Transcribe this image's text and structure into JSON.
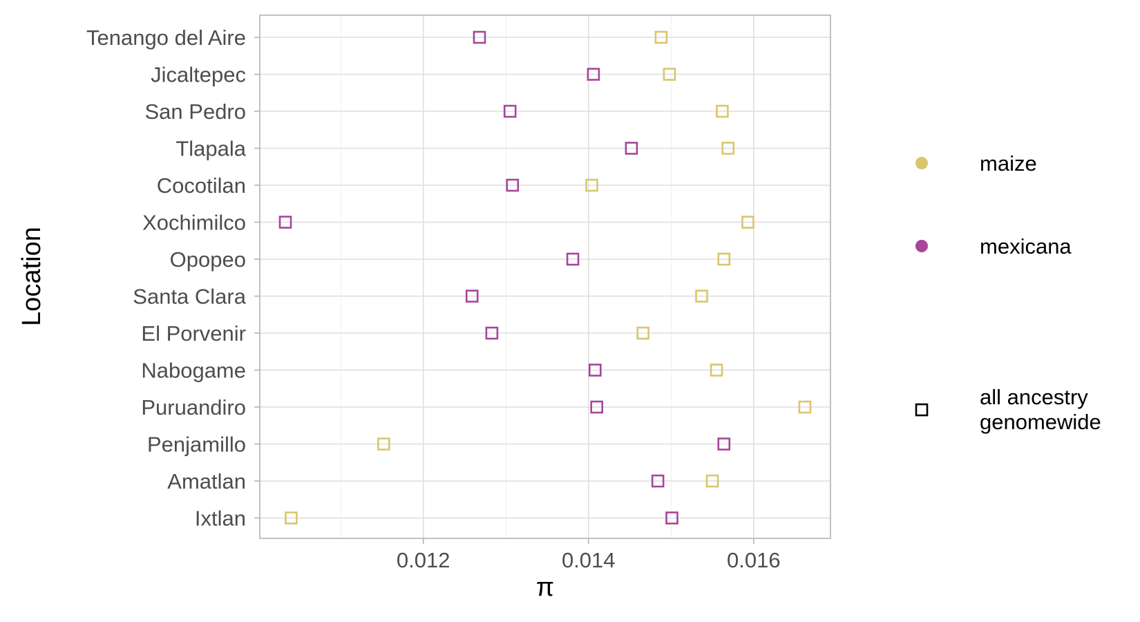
{
  "chart_data": {
    "type": "scatter",
    "xlabel": "π",
    "ylabel": "Location",
    "xlim": [
      0.01002,
      0.01693
    ],
    "x_ticks": [
      0.012,
      0.014,
      0.016
    ],
    "x_tick_labels": [
      "0.012",
      "0.014",
      "0.016"
    ],
    "grid": true,
    "legend_position": "right",
    "categories": [
      "Tenango del Aire",
      "Jicaltepec",
      "San Pedro",
      "Tlapala",
      "Cocotilan",
      "Xochimilco",
      "Opopeo",
      "Santa Clara",
      "El Porvenir",
      "Nabogame",
      "Puruandiro",
      "Penjamillo",
      "Amatlan",
      "Ixtlan"
    ],
    "series": [
      {
        "name": "maize",
        "color": "#D9C66B",
        "marker": "open-square",
        "values": [
          0.01488,
          0.01498,
          0.01562,
          0.01569,
          0.01404,
          0.01593,
          0.01564,
          0.01537,
          0.01466,
          0.01555,
          0.01662,
          0.01152,
          0.0155,
          0.0104
        ]
      },
      {
        "name": "mexicana",
        "color": "#A8449A",
        "marker": "open-square",
        "values": [
          0.01268,
          0.01406,
          0.01305,
          0.01452,
          0.01308,
          0.01033,
          0.01381,
          0.01259,
          0.01283,
          0.01408,
          0.0141,
          0.01564,
          0.01484,
          0.01501
        ]
      }
    ],
    "legend": {
      "color_items": [
        {
          "label": "maize",
          "color": "#D9C66B"
        },
        {
          "label": "mexicana",
          "color": "#A8449A"
        }
      ],
      "shape_items": [
        {
          "label_lines": [
            "all ancestry",
            "genomewide"
          ],
          "marker": "open-square"
        }
      ]
    }
  }
}
